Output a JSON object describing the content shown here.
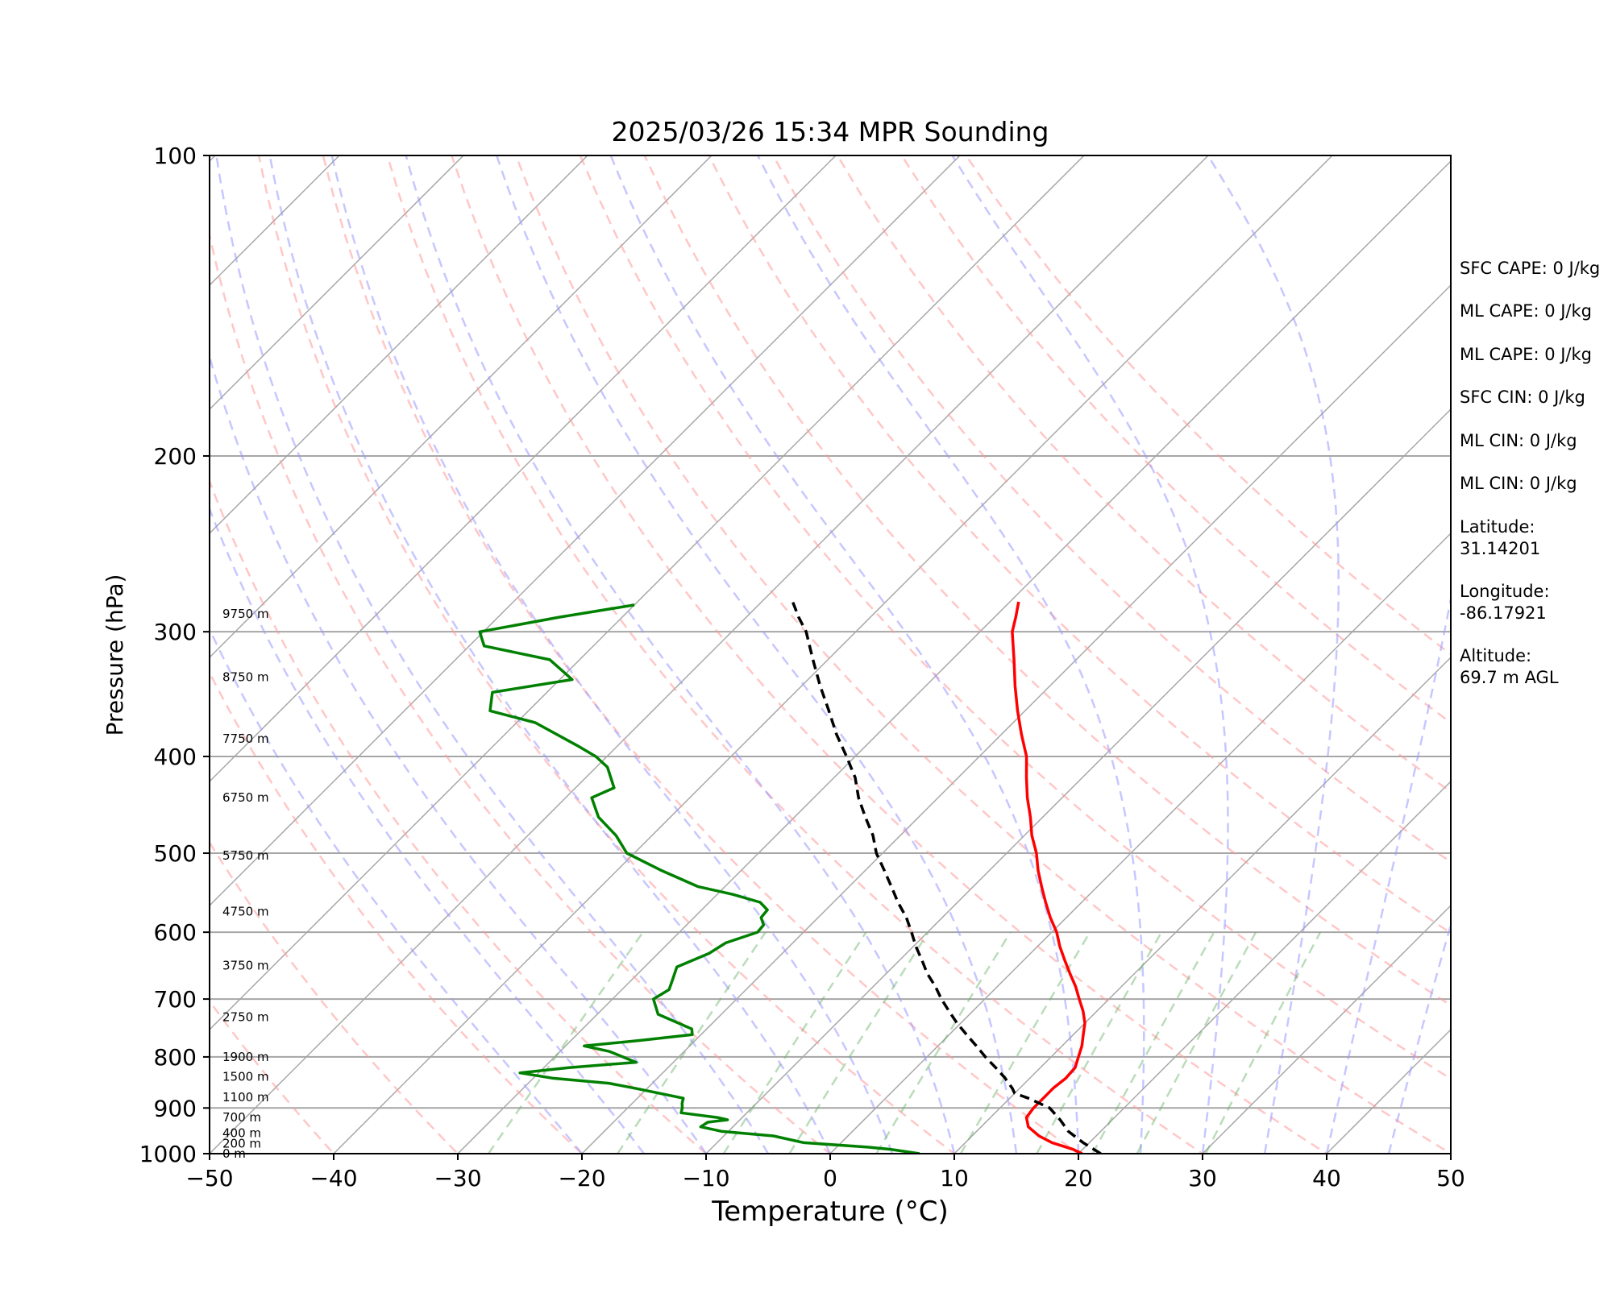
{
  "chart_data": {
    "type": "line",
    "title": "2025/03/26 15:34 MPR Sounding",
    "xlabel": "Temperature (°C)",
    "ylabel": "Pressure (hPa)",
    "xlim": [
      -50,
      50
    ],
    "ylim": [
      1000,
      100
    ],
    "y_scale": "log",
    "x_ticks": [
      "−50",
      "−40",
      "−30",
      "−20",
      "−10",
      "0",
      "10",
      "20",
      "30",
      "40",
      "50"
    ],
    "x_tick_values": [
      -50,
      -40,
      -30,
      -20,
      -10,
      0,
      10,
      20,
      30,
      40,
      50
    ],
    "y_ticks": [
      "1000",
      "900",
      "800",
      "700",
      "600",
      "500",
      "400",
      "300",
      "200",
      "100"
    ],
    "y_tick_values": [
      1000,
      900,
      800,
      700,
      600,
      500,
      400,
      300,
      200,
      100
    ],
    "grid": true,
    "height_labels": [
      {
        "p": 1000,
        "label": "0 m"
      },
      {
        "p": 977,
        "label": "200 m"
      },
      {
        "p": 954,
        "label": "400 m"
      },
      {
        "p": 920,
        "label": "700 m"
      },
      {
        "p": 878,
        "label": "1100 m"
      },
      {
        "p": 837,
        "label": "1500 m"
      },
      {
        "p": 800,
        "label": "1900 m"
      },
      {
        "p": 730,
        "label": "2750 m"
      },
      {
        "p": 648,
        "label": "3750 m"
      },
      {
        "p": 572,
        "label": "4750 m"
      },
      {
        "p": 503,
        "label": "5750 m"
      },
      {
        "p": 440,
        "label": "6750 m"
      },
      {
        "p": 384,
        "label": "7750 m"
      },
      {
        "p": 333,
        "label": "8750 m"
      },
      {
        "p": 288,
        "label": "9750 m"
      }
    ],
    "series": [
      {
        "name": "",
        "color": "#ff0000",
        "style": "solid",
        "pressure": [
          1000,
          990,
          975,
          960,
          940,
          920,
          900,
          880,
          860,
          840,
          820,
          800,
          780,
          760,
          740,
          720,
          700,
          680,
          660,
          640,
          620,
          600,
          580,
          560,
          540,
          520,
          500,
          480,
          460,
          440,
          420,
          400,
          380,
          360,
          340,
          320,
          300,
          290,
          280
        ],
        "temperature": [
          20.3,
          19.2,
          17.0,
          15.4,
          13.8,
          12.9,
          12.7,
          12.7,
          12.7,
          12.9,
          12.8,
          12.2,
          11.6,
          10.8,
          10.0,
          8.9,
          7.6,
          6.3,
          4.8,
          3.3,
          1.8,
          0.4,
          -1.3,
          -2.9,
          -4.5,
          -6.1,
          -7.6,
          -9.4,
          -11.0,
          -12.8,
          -14.5,
          -16.2,
          -18.4,
          -20.6,
          -22.8,
          -25.0,
          -27.4,
          -28.3,
          -29.3
        ]
      },
      {
        "name": "",
        "color": "#008000",
        "style": "solid",
        "pressure": [
          1000,
          990,
          985,
          975,
          960,
          950,
          940,
          930,
          925,
          920,
          910,
          900,
          890,
          880,
          860,
          850,
          840,
          830,
          820,
          810,
          790,
          780,
          770,
          760,
          750,
          725,
          700,
          685,
          670,
          650,
          630,
          615,
          600,
          590,
          580,
          570,
          560,
          550,
          540,
          520,
          500,
          480,
          460,
          440,
          430,
          410,
          400,
          390,
          370,
          360,
          345,
          335,
          320,
          310,
          300,
          290,
          282
        ],
        "temperature": [
          7.2,
          4.5,
          2.5,
          -3.0,
          -6.0,
          -10.5,
          -12.6,
          -12.4,
          -11.0,
          -12.0,
          -15.3,
          -15.6,
          -16.0,
          -16.3,
          -21.0,
          -23.5,
          -28.5,
          -31.5,
          -28.0,
          -23.0,
          -26.0,
          -28.5,
          -24.4,
          -20.7,
          -21.2,
          -25.1,
          -26.7,
          -26.2,
          -26.7,
          -27.4,
          -25.9,
          -25.4,
          -23.7,
          -23.8,
          -24.6,
          -24.7,
          -25.9,
          -28.7,
          -32.2,
          -36.5,
          -40.6,
          -42.9,
          -45.8,
          -47.9,
          -46.9,
          -49.1,
          -50.9,
          -53.3,
          -58.5,
          -63.1,
          -64.4,
          -59.0,
          -62.4,
          -68.8,
          -70.3,
          -65.0,
          -60.0
        ]
      },
      {
        "name": "",
        "color": "#000000",
        "style": "dashed",
        "pressure": [
          1000,
          975,
          950,
          925,
          900,
          880,
          870,
          860,
          850,
          840,
          820,
          800,
          780,
          760,
          740,
          720,
          700,
          680,
          660,
          640,
          620,
          600,
          580,
          560,
          540,
          520,
          500,
          480,
          460,
          440,
          420,
          400,
          380,
          360,
          340,
          320,
          300,
          290,
          280
        ],
        "temperature": [
          21.8,
          19.5,
          17.4,
          15.8,
          14.0,
          11.5,
          10.0,
          9.4,
          8.7,
          8.0,
          6.4,
          4.7,
          3.1,
          1.4,
          -0.3,
          -1.9,
          -3.5,
          -5.0,
          -6.7,
          -8.2,
          -9.8,
          -11.3,
          -12.9,
          -14.8,
          -16.6,
          -18.5,
          -20.5,
          -22.2,
          -24.3,
          -26.4,
          -28.3,
          -30.7,
          -33.3,
          -35.8,
          -38.5,
          -41.2,
          -44.0,
          -45.8,
          -47.5
        ]
      }
    ]
  },
  "info_panel": {
    "sfc_cape": "SFC CAPE: 0 J/kg",
    "ml_cape_1": "ML CAPE: 0 J/kg",
    "ml_cape_2": "ML CAPE: 0 J/kg",
    "sfc_cin": "SFC CIN: 0 J/kg",
    "ml_cin_1": "ML CIN: 0 J/kg",
    "ml_cin_2": "ML CIN: 0 J/kg",
    "latitude_label": "Latitude:",
    "latitude_value": "31.14201",
    "longitude_label": "Longitude:",
    "longitude_value": "-86.17921",
    "altitude_label": "Altitude:",
    "altitude_value": "69.7 m AGL"
  },
  "colors": {
    "temperature": "#ff0000",
    "dewpoint": "#008000",
    "parcel": "#000000",
    "dry_adiabats": "#ff9999",
    "moist_adiabats": "#9999ff",
    "mixing_ratio": "#66b266",
    "isotherms": "#a6a6a6"
  }
}
